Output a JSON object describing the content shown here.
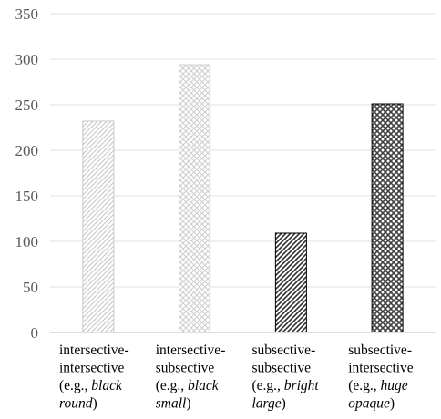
{
  "chart_data": {
    "type": "bar",
    "title": "",
    "xlabel": "",
    "ylabel": "",
    "ylim": [
      0,
      350
    ],
    "yticks": [
      "0",
      "50",
      "100",
      "150",
      "200",
      "250",
      "300",
      "350"
    ],
    "grid": true,
    "legend": "none",
    "categories": [
      "intersective-intersective (e.g., black round)",
      "intersective-subsective (e.g., black small)",
      "subsective-subsective (e.g., bright large)",
      "subsective-intersective (e.g., huge opaque)"
    ],
    "category_label_lines": [
      [
        [
          "intersective-"
        ],
        [
          "intersective"
        ],
        [
          "(e.g., ",
          "black"
        ],
        [
          "round",
          ")"
        ]
      ],
      [
        [
          "intersective-"
        ],
        [
          "subsective"
        ],
        [
          "(e.g., ",
          "black"
        ],
        [
          "small",
          ")"
        ]
      ],
      [
        [
          "subsective-"
        ],
        [
          "subsective"
        ],
        [
          "(e.g., ",
          "bright"
        ],
        [
          "large",
          ")"
        ]
      ],
      [
        [
          "subsective-"
        ],
        [
          "intersective"
        ],
        [
          "(e.g., ",
          "huge"
        ],
        [
          "opaque",
          ")"
        ]
      ]
    ],
    "values": [
      232,
      294,
      109,
      251
    ],
    "bar_styles": [
      {
        "pattern": "diagonal-light",
        "fill_color": "#c8c8c8",
        "stroke_color": "#c8c8c8"
      },
      {
        "pattern": "crosshatch-light",
        "fill_color": "#cfcfcf",
        "stroke_color": "#cfcfcf"
      },
      {
        "pattern": "diagonal-dark",
        "fill_color": "#303030",
        "stroke_color": "#000000"
      },
      {
        "pattern": "crosshatch-dark",
        "fill_color": "#404040",
        "stroke_color": "#000000"
      }
    ],
    "colors": {
      "grid": "#e0e0e0",
      "axis": "#bfbfbf",
      "tick_text": "#595959",
      "category_text": "#000000"
    }
  }
}
